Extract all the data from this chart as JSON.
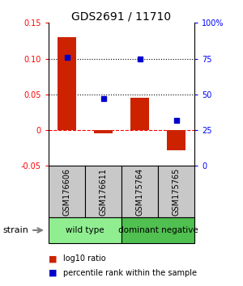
{
  "title": "GDS2691 / 11710",
  "samples": [
    "GSM176606",
    "GSM176611",
    "GSM175764",
    "GSM175765"
  ],
  "log10_ratios": [
    0.13,
    -0.005,
    0.045,
    -0.028
  ],
  "percentile_ranks": [
    0.76,
    0.47,
    0.75,
    0.32
  ],
  "groups": [
    {
      "label": "wild type",
      "samples": [
        0,
        1
      ],
      "color": "#90EE90"
    },
    {
      "label": "dominant negative",
      "samples": [
        2,
        3
      ],
      "color": "#50C050"
    }
  ],
  "bar_color": "#CC2200",
  "dot_color": "#0000CC",
  "ylim_left": [
    -0.05,
    0.15
  ],
  "ylim_right": [
    0.0,
    1.0
  ],
  "yticks_left": [
    -0.05,
    0.0,
    0.05,
    0.1,
    0.15
  ],
  "ytick_labels_left": [
    "-0.05",
    "0",
    "0.05",
    "0.10",
    "0.15"
  ],
  "yticks_right": [
    0.0,
    0.25,
    0.5,
    0.75,
    1.0
  ],
  "ytick_labels_right": [
    "0",
    "25",
    "50",
    "75",
    "100%"
  ],
  "hlines_dotted": [
    0.05,
    0.1
  ],
  "hline_dashed": 0.0,
  "bg_color": "#FFFFFF",
  "sample_box_color": "#C8C8C8",
  "strain_label": "strain"
}
